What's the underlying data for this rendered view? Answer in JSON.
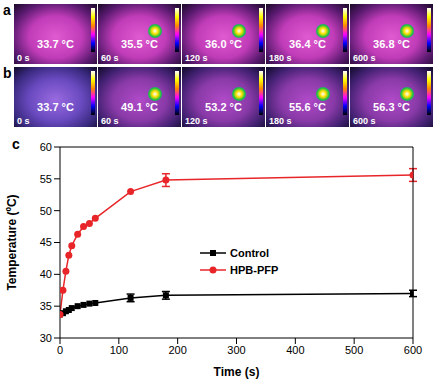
{
  "thermal_panels": [
    {
      "label": "a",
      "frames": [
        {
          "temperature": "33.7 °C",
          "time": "0 s"
        },
        {
          "temperature": "35.5 °C",
          "time": "60 s"
        },
        {
          "temperature": "36.0 °C",
          "time": "120 s"
        },
        {
          "temperature": "36.4 °C",
          "time": "180 s"
        },
        {
          "temperature": "36.8 °C",
          "time": "600 s"
        }
      ]
    },
    {
      "label": "b",
      "frames": [
        {
          "temperature": "33.7 °C",
          "time": "0 s"
        },
        {
          "temperature": "49.1 °C",
          "time": "60 s"
        },
        {
          "temperature": "53.2 °C",
          "time": "120 s"
        },
        {
          "temperature": "55.6 °C",
          "time": "180 s"
        },
        {
          "temperature": "56.3 °C",
          "time": "600 s"
        }
      ]
    }
  ],
  "chart_data": {
    "label": "c",
    "type": "line",
    "x_label": "Time (s)",
    "y_label": "Temperature (ºC)",
    "x": [
      0,
      5,
      10,
      15,
      20,
      30,
      40,
      50,
      60,
      120,
      180,
      600
    ],
    "xlim": [
      0,
      600
    ],
    "xticks": [
      0,
      100,
      200,
      300,
      400,
      500,
      600
    ],
    "ylim": [
      30,
      60
    ],
    "yticks": [
      30,
      35,
      40,
      45,
      50,
      55,
      60
    ],
    "legend": "center",
    "series": [
      {
        "name": "Control",
        "color": "#000000",
        "marker": "square",
        "values": [
          33.7,
          33.9,
          34.2,
          34.4,
          34.7,
          35.0,
          35.2,
          35.4,
          35.5,
          36.3,
          36.7,
          37.0
        ],
        "errors": [
          0,
          0,
          0,
          0,
          0,
          0,
          0,
          0,
          0,
          0.6,
          0.6,
          0.5
        ]
      },
      {
        "name": "HPB-PFP",
        "color": "#e8262a",
        "marker": "circle",
        "values": [
          33.7,
          37.5,
          40.5,
          43.0,
          44.5,
          46.3,
          47.5,
          48.0,
          48.8,
          53.0,
          54.8,
          55.6
        ],
        "errors": [
          0,
          0,
          0,
          0,
          0,
          0,
          0,
          0,
          0,
          0,
          1.0,
          1.0
        ]
      }
    ]
  }
}
